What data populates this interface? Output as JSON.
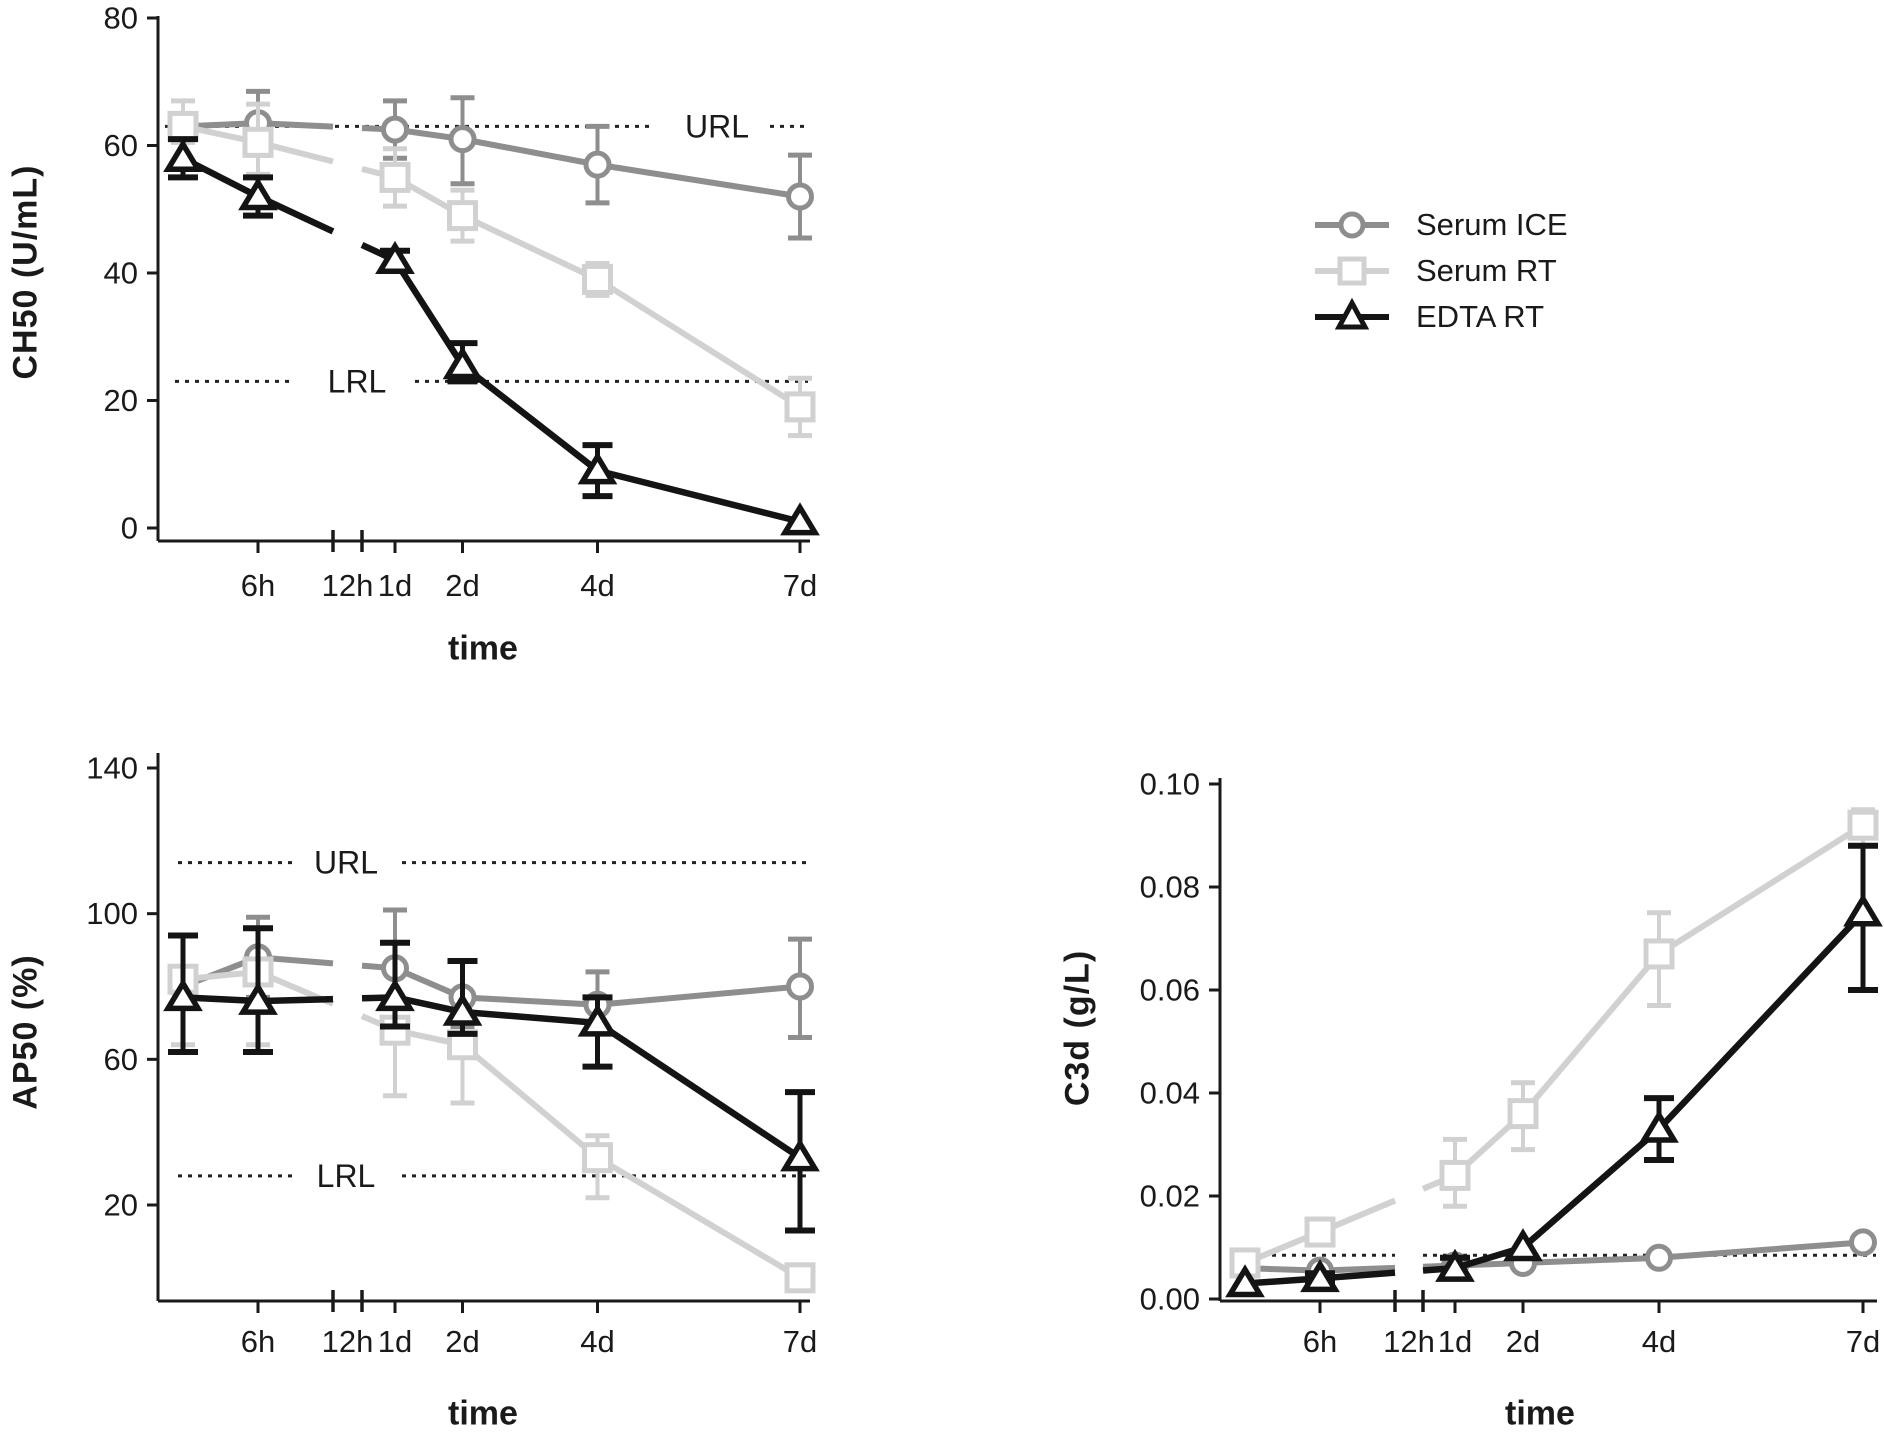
{
  "figure": {
    "legend": {
      "items": [
        {
          "label": "Serum ICE",
          "series": "ice",
          "marker": "circle"
        },
        {
          "label": "Serum RT",
          "series": "rt",
          "marker": "square"
        },
        {
          "label": "EDTA RT",
          "series": "edta",
          "marker": "triangle"
        }
      ]
    },
    "colors": {
      "ice": "#8e8e8e",
      "rt": "#d1d1d1",
      "edta": "#141414",
      "text": "#1a1a1a",
      "ref": "#222222"
    },
    "time_axis": {
      "label": "time",
      "ticks": [
        {
          "label": "6h",
          "t": 0.25
        },
        {
          "label": "12h",
          "t": "break"
        },
        {
          "label": "1d",
          "t": 1
        },
        {
          "label": "2d",
          "t": 2
        },
        {
          "label": "4d",
          "t": 4
        },
        {
          "label": "7d",
          "t": 7
        }
      ],
      "point_times_days": [
        0,
        0.25,
        1,
        2,
        4,
        7
      ]
    }
  },
  "chart_data": [
    {
      "id": "ch50",
      "type": "line",
      "ylabel": "CH50 (U/mL)",
      "xlabel": "time",
      "ylim": [
        0,
        80
      ],
      "ytick_values": [
        0,
        20,
        40,
        60,
        80
      ],
      "ytick_labels": [
        "0",
        "20",
        "40",
        "60",
        "80"
      ],
      "ref_lines": [
        {
          "label": "URL",
          "value": 63
        },
        {
          "label": "LRL",
          "value": 23
        }
      ],
      "series": [
        {
          "name": "Serum ICE",
          "key": "ice",
          "marker": "circle",
          "values": [
            63,
            63.5,
            62.5,
            61,
            57,
            52
          ],
          "err_up": [
            0,
            5,
            4.5,
            6.5,
            6,
            6.5
          ],
          "err_dn": [
            0,
            5,
            4.5,
            7,
            6,
            6.5
          ]
        },
        {
          "name": "Serum RT",
          "key": "rt",
          "marker": "square",
          "values": [
            63,
            60.5,
            55,
            49,
            39,
            19
          ],
          "err_up": [
            4,
            6,
            4.5,
            4,
            2.5,
            4.5
          ],
          "err_dn": [
            2.5,
            5,
            4.5,
            4,
            2.5,
            4.5
          ]
        },
        {
          "name": "EDTA RT",
          "key": "edta",
          "marker": "triangle",
          "values": [
            58,
            52,
            42,
            25.5,
            9,
            1
          ],
          "err_up": [
            3,
            3,
            1.5,
            3.5,
            4,
            0
          ],
          "err_dn": [
            3,
            3,
            1.5,
            2.5,
            4,
            0
          ]
        }
      ]
    },
    {
      "id": "ap50",
      "type": "line",
      "ylabel": "AP50 (%)",
      "xlabel": "time",
      "ylim": [
        20,
        140
      ],
      "ytick_values": [
        20,
        60,
        100,
        140
      ],
      "ytick_labels": [
        "20",
        "60",
        "100",
        "140"
      ],
      "ref_lines": [
        {
          "label": "URL",
          "value": 114
        },
        {
          "label": "LRL",
          "value": 28
        }
      ],
      "series": [
        {
          "name": "Serum ICE",
          "key": "ice",
          "marker": "circle",
          "values": [
            80,
            88,
            85,
            77,
            75,
            80
          ],
          "err_up": [
            0,
            11,
            16,
            10,
            9,
            13
          ],
          "err_dn": [
            0,
            11,
            10,
            8,
            8,
            14
          ]
        },
        {
          "name": "Serum RT",
          "key": "rt",
          "marker": "square",
          "values": [
            82,
            84,
            68,
            64,
            33,
            0
          ],
          "err_up": [
            12,
            12,
            8,
            6,
            6,
            0
          ],
          "err_dn": [
            18,
            20,
            18,
            16,
            11,
            0
          ]
        },
        {
          "name": "EDTA RT",
          "key": "edta",
          "marker": "triangle",
          "values": [
            77,
            76,
            77,
            73,
            70,
            33
          ],
          "err_up": [
            17,
            20,
            15,
            14,
            7,
            18
          ],
          "err_dn": [
            15,
            14,
            8,
            6,
            12,
            20
          ]
        }
      ]
    },
    {
      "id": "c3d",
      "type": "line",
      "ylabel": "C3d (g/L)",
      "xlabel": "time",
      "ylim": [
        0,
        0.1
      ],
      "ytick_values": [
        0,
        0.02,
        0.04,
        0.06,
        0.08,
        0.1
      ],
      "ytick_labels": [
        "0.00",
        "0.02",
        "0.04",
        "0.06",
        "0.08",
        "0.10"
      ],
      "ref_lines": [
        {
          "label": "",
          "value": 0.0085
        }
      ],
      "series": [
        {
          "name": "Serum ICE",
          "key": "ice",
          "marker": "circle",
          "values": [
            0.006,
            0.0055,
            0.0065,
            0.007,
            0.008,
            0.011
          ],
          "err_up": [
            0,
            0,
            0,
            0,
            0,
            0
          ],
          "err_dn": [
            0,
            0,
            0,
            0,
            0,
            0
          ]
        },
        {
          "name": "Serum RT",
          "key": "rt",
          "marker": "square",
          "values": [
            0.007,
            0.013,
            0.024,
            0.036,
            0.067,
            0.092
          ],
          "err_up": [
            0.001,
            0.002,
            0.007,
            0.006,
            0.008,
            0.003
          ],
          "err_dn": [
            0.001,
            0.002,
            0.006,
            0.007,
            0.01,
            0.004
          ]
        },
        {
          "name": "EDTA RT",
          "key": "edta",
          "marker": "triangle",
          "values": [
            0.003,
            0.004,
            0.006,
            0.01,
            0.033,
            0.075
          ],
          "err_up": [
            0,
            0.001,
            0.002,
            0,
            0.006,
            0.013
          ],
          "err_dn": [
            0,
            0.001,
            0.002,
            0,
            0.006,
            0.015
          ]
        }
      ]
    }
  ]
}
